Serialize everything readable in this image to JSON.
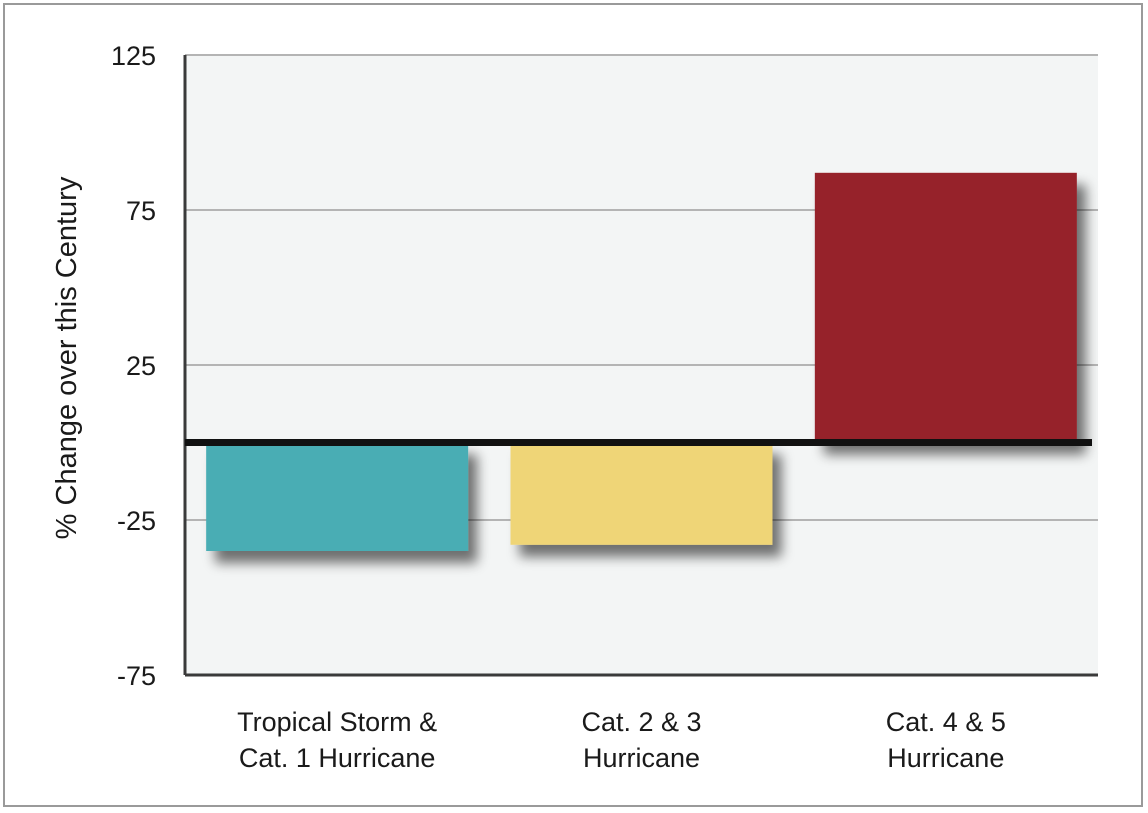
{
  "chart_data": {
    "type": "bar",
    "categories": [
      [
        "Tropical Storm &",
        "Cat. 1 Hurricane"
      ],
      [
        "Cat. 2 & 3",
        "Hurricane"
      ],
      [
        "Cat. 4 & 5",
        "Hurricane"
      ]
    ],
    "values": [
      -35,
      -33,
      87
    ],
    "colors": [
      "#48adb4",
      "#efd577",
      "#96212c"
    ],
    "ylabel": "% Change over this Century",
    "xlabel": "",
    "ylim": [
      -75,
      125
    ],
    "yticks": [
      125,
      75,
      25,
      -25,
      -75
    ],
    "grid": true,
    "legend": "none"
  }
}
